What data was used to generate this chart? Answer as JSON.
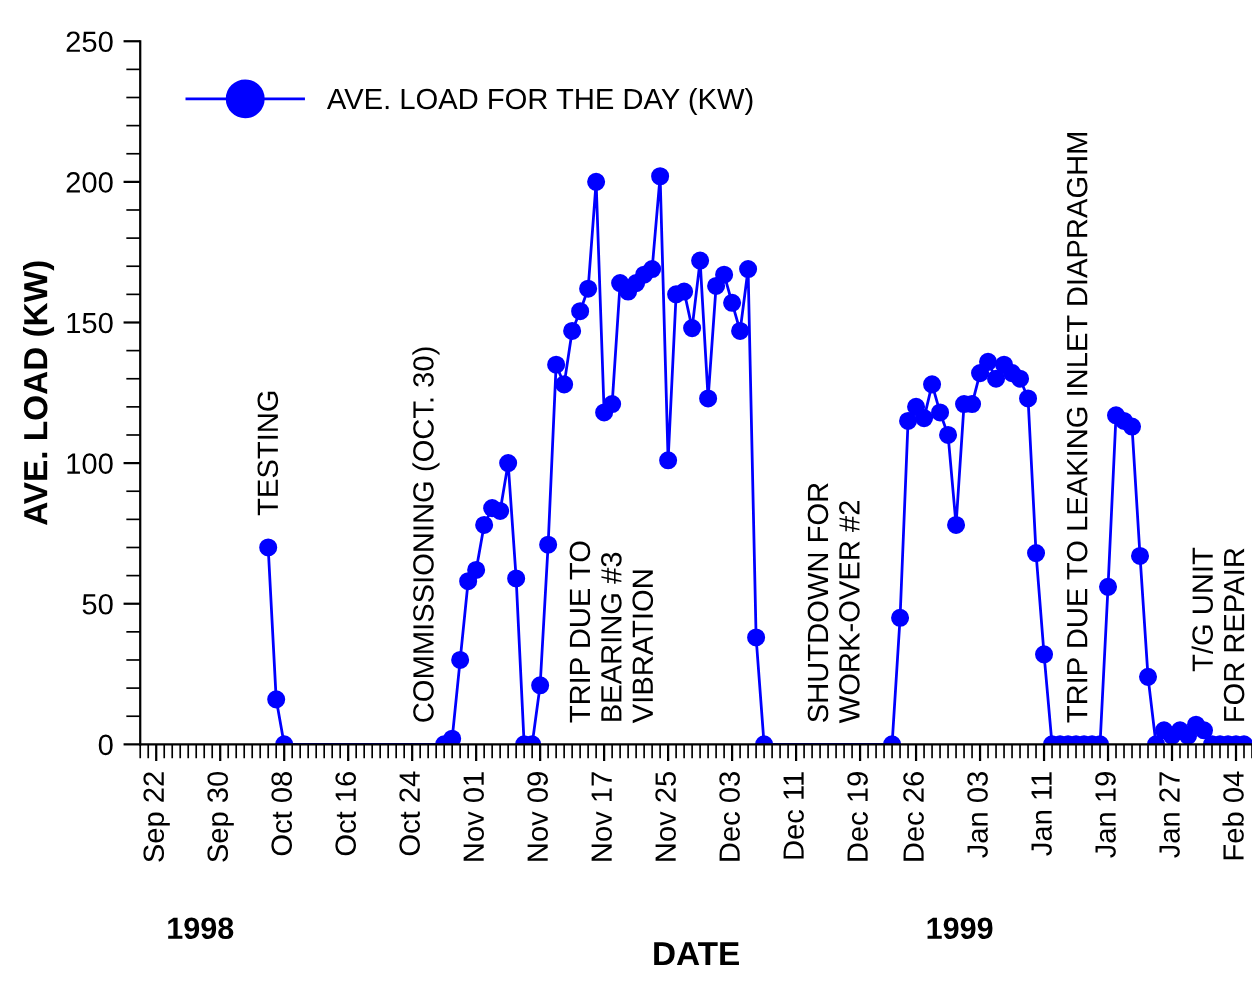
{
  "chart_data": {
    "type": "line",
    "xlabel": "DATE",
    "ylabel": "AVE. LOAD (KW)",
    "xlim": [
      "1998-09-20",
      "1999-02-06"
    ],
    "ylim": [
      0,
      250
    ],
    "yticks": [
      0,
      50,
      100,
      150,
      200,
      250
    ],
    "xticks": [
      {
        "value": "1998-09-22",
        "label": "Sep 22"
      },
      {
        "value": "1998-09-30",
        "label": "Sep 30"
      },
      {
        "value": "1998-10-08",
        "label": "Oct 08"
      },
      {
        "value": "1998-10-16",
        "label": "Oct 16"
      },
      {
        "value": "1998-10-24",
        "label": "Oct 24"
      },
      {
        "value": "1998-11-01",
        "label": "Nov 01"
      },
      {
        "value": "1998-11-09",
        "label": "Nov 09"
      },
      {
        "value": "1998-11-17",
        "label": "Nov 17"
      },
      {
        "value": "1998-11-25",
        "label": "Nov 25"
      },
      {
        "value": "1998-12-03",
        "label": "Dec 03"
      },
      {
        "value": "1998-12-11",
        "label": "Dec 11"
      },
      {
        "value": "1998-12-19",
        "label": "Dec 19"
      },
      {
        "value": "1998-12-26",
        "label": "Dec 26"
      },
      {
        "value": "1999-01-03",
        "label": "Jan 03"
      },
      {
        "value": "1999-01-11",
        "label": "Jan 11"
      },
      {
        "value": "1999-01-19",
        "label": "Jan 19"
      },
      {
        "value": "1999-01-27",
        "label": "Jan 27"
      },
      {
        "value": "1999-02-04",
        "label": "Feb 04"
      }
    ],
    "grid": false,
    "legend": "top left",
    "marker": "circle",
    "line_style": "solid",
    "series": [
      {
        "name": "AVE. LOAD FOR THE DAY (KW)",
        "color": "#0000ff",
        "x": [
          "1998-10-06",
          "1998-10-07",
          "1998-10-08",
          "1998-10-28",
          "1998-10-29",
          "1998-10-30",
          "1998-10-31",
          "1998-11-01",
          "1998-11-02",
          "1998-11-03",
          "1998-11-04",
          "1998-11-05",
          "1998-11-06",
          "1998-11-07",
          "1998-11-08",
          "1998-11-09",
          "1998-11-10",
          "1998-11-11",
          "1998-11-12",
          "1998-11-13",
          "1998-11-14",
          "1998-11-15",
          "1998-11-16",
          "1998-11-17",
          "1998-11-18",
          "1998-11-19",
          "1998-11-20",
          "1998-11-21",
          "1998-11-22",
          "1998-11-23",
          "1998-11-24",
          "1998-11-25",
          "1998-11-26",
          "1998-11-27",
          "1998-11-28",
          "1998-11-29",
          "1998-11-30",
          "1998-12-01",
          "1998-12-02",
          "1998-12-03",
          "1998-12-04",
          "1998-12-05",
          "1998-12-06",
          "1998-12-07",
          "1998-12-23",
          "1998-12-24",
          "1998-12-25",
          "1998-12-26",
          "1998-12-27",
          "1998-12-28",
          "1998-12-29",
          "1998-12-30",
          "1998-12-31",
          "1999-01-01",
          "1999-01-02",
          "1999-01-03",
          "1999-01-04",
          "1999-01-05",
          "1999-01-06",
          "1999-01-07",
          "1999-01-08",
          "1999-01-09",
          "1999-01-10",
          "1999-01-11",
          "1999-01-12",
          "1999-01-13",
          "1999-01-14",
          "1999-01-15",
          "1999-01-16",
          "1999-01-17",
          "1999-01-18",
          "1999-01-19",
          "1999-01-20",
          "1999-01-21",
          "1999-01-22",
          "1999-01-23",
          "1999-01-24",
          "1999-01-25",
          "1999-01-26",
          "1999-01-27",
          "1999-01-28",
          "1999-01-29",
          "1999-01-30",
          "1999-01-31",
          "1999-02-01",
          "1999-02-02",
          "1999-02-03",
          "1999-02-04",
          "1999-02-05"
        ],
        "values": [
          70,
          16,
          0,
          0,
          2,
          30,
          58,
          62,
          78,
          84,
          83,
          100,
          59,
          0,
          0,
          21,
          71,
          135,
          128,
          147,
          154,
          162,
          200,
          118,
          121,
          164,
          161,
          164,
          167,
          169,
          202,
          101,
          160,
          161,
          148,
          172,
          123,
          163,
          167,
          157,
          147,
          169,
          38,
          0,
          0,
          45,
          115,
          120,
          116,
          128,
          118,
          110,
          78,
          121,
          121,
          132,
          136,
          130,
          135,
          132,
          130,
          123,
          68,
          32,
          0,
          0,
          0,
          0,
          0,
          0,
          0,
          56,
          117,
          115,
          113,
          67,
          24,
          0,
          5,
          3,
          5,
          3,
          7,
          5,
          0,
          0,
          0,
          0,
          0
        ]
      }
    ],
    "annotations": [
      "TESTING",
      "COMMISSIONING (OCT. 30)",
      "TRIP DUE TO\nBEARING #3\nVIBRATION",
      "SHUTDOWN FOR\nWORK-OVER #2",
      "TRIP DUE TO LEAKING INLET DIAPRAGHM",
      "T/G UNIT\nFOR REPAIR",
      "1998",
      "1999"
    ]
  }
}
